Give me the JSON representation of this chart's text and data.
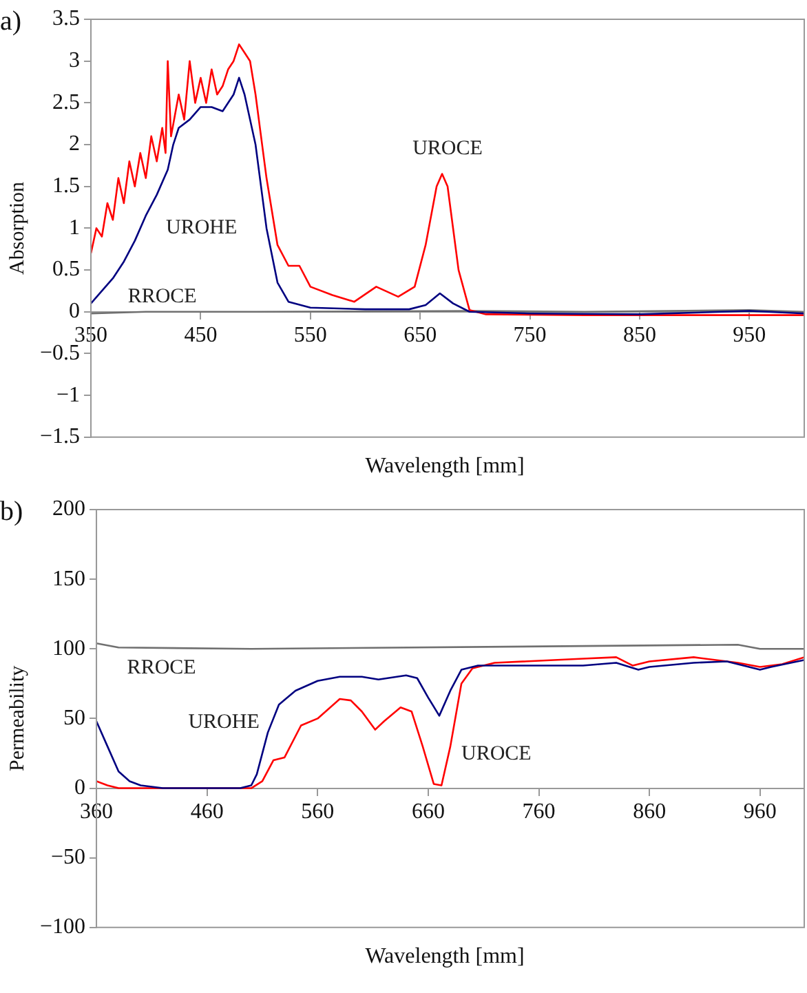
{
  "chart_data": [
    {
      "type": "line",
      "title": "a)",
      "xlabel": "Wavelength [mm]",
      "ylabel": "Absorption",
      "xlim": [
        350,
        1000
      ],
      "xticks": [
        350,
        450,
        550,
        650,
        750,
        850,
        950
      ],
      "ylim": [
        -1.5,
        3.5
      ],
      "yticks": [
        -1.5,
        -1,
        -0.5,
        0,
        0.5,
        1,
        1.5,
        2,
        2.5,
        3,
        3.5
      ],
      "grid": false,
      "legend": false,
      "marker": "none",
      "line_style": "solid",
      "series": [
        {
          "name": "UROHE",
          "color": "#000080",
          "x": [
            350,
            360,
            370,
            380,
            390,
            400,
            410,
            420,
            425,
            430,
            440,
            450,
            460,
            470,
            480,
            485,
            490,
            500,
            510,
            520,
            530,
            550,
            600,
            640,
            655,
            668,
            680,
            695,
            750,
            850,
            950,
            1000
          ],
          "values": [
            0.1,
            0.25,
            0.4,
            0.6,
            0.85,
            1.15,
            1.4,
            1.7,
            2.0,
            2.2,
            2.3,
            2.45,
            2.45,
            2.4,
            2.6,
            2.8,
            2.6,
            2.0,
            1.0,
            0.35,
            0.12,
            0.05,
            0.03,
            0.03,
            0.08,
            0.22,
            0.1,
            0,
            -0.02,
            -0.03,
            0.01,
            -0.02
          ]
        },
        {
          "name": "UROCE",
          "color": "#ff0000",
          "x": [
            350,
            355,
            360,
            365,
            370,
            375,
            380,
            385,
            390,
            395,
            400,
            405,
            410,
            415,
            418,
            420,
            423,
            430,
            435,
            440,
            445,
            450,
            455,
            460,
            465,
            470,
            475,
            480,
            485,
            490,
            495,
            500,
            510,
            520,
            530,
            540,
            550,
            570,
            590,
            610,
            630,
            645,
            655,
            665,
            670,
            675,
            685,
            695,
            710,
            800,
            900,
            1000
          ],
          "values": [
            0.7,
            1.0,
            0.9,
            1.3,
            1.1,
            1.6,
            1.3,
            1.8,
            1.5,
            1.9,
            1.6,
            2.1,
            1.8,
            2.2,
            1.9,
            3.0,
            2.1,
            2.6,
            2.3,
            3.0,
            2.5,
            2.8,
            2.5,
            2.9,
            2.6,
            2.7,
            2.9,
            3.0,
            3.2,
            3.1,
            3.0,
            2.6,
            1.6,
            0.8,
            0.55,
            0.55,
            0.3,
            0.2,
            0.12,
            0.3,
            0.18,
            0.3,
            0.8,
            1.5,
            1.65,
            1.5,
            0.5,
            0.02,
            -0.03,
            -0.04,
            -0.04,
            -0.04
          ]
        },
        {
          "name": "RROCE",
          "color": "#707070",
          "x": [
            350,
            400,
            500,
            700,
            800,
            950,
            1000
          ],
          "values": [
            -0.02,
            0,
            0,
            0.01,
            0,
            0.02,
            0
          ]
        }
      ]
    },
    {
      "type": "line",
      "title": "b)",
      "xlabel": "Wavelength [mm]",
      "ylabel": "Permeability",
      "xlim": [
        360,
        1000
      ],
      "xticks": [
        360,
        460,
        560,
        660,
        760,
        860,
        960
      ],
      "ylim": [
        -100,
        200
      ],
      "yticks": [
        -100,
        -50,
        0,
        50,
        100,
        150,
        200
      ],
      "grid": false,
      "legend": false,
      "marker": "none",
      "line_style": "solid",
      "series": [
        {
          "name": "UROHE",
          "color": "#000080",
          "x": [
            360,
            370,
            380,
            390,
            400,
            420,
            490,
            500,
            505,
            515,
            525,
            540,
            560,
            580,
            600,
            615,
            640,
            650,
            660,
            670,
            680,
            690,
            705,
            800,
            830,
            850,
            860,
            900,
            930,
            960,
            970,
            1000
          ],
          "values": [
            48,
            30,
            12,
            5,
            2,
            0,
            0,
            2,
            10,
            40,
            60,
            70,
            77,
            80,
            80,
            78,
            81,
            79,
            65,
            52,
            70,
            85,
            88,
            88,
            90,
            85,
            87,
            90,
            91,
            85,
            87,
            92
          ]
        },
        {
          "name": "UROCE",
          "color": "#ff0000",
          "x": [
            360,
            370,
            380,
            500,
            510,
            520,
            530,
            545,
            560,
            580,
            590,
            600,
            612,
            620,
            635,
            645,
            655,
            665,
            672,
            680,
            690,
            700,
            720,
            800,
            830,
            845,
            860,
            900,
            940,
            960,
            980,
            1000
          ],
          "values": [
            5,
            2,
            0,
            0,
            5,
            20,
            22,
            45,
            50,
            64,
            63,
            55,
            42,
            48,
            58,
            55,
            30,
            3,
            2,
            30,
            75,
            86,
            90,
            93,
            94,
            88,
            91,
            94,
            90,
            87,
            89,
            94
          ]
        },
        {
          "name": "RROCE",
          "color": "#707070",
          "x": [
            360,
            380,
            500,
            940,
            960,
            1000
          ],
          "values": [
            104,
            101,
            100,
            103,
            100,
            100
          ]
        }
      ]
    }
  ]
}
